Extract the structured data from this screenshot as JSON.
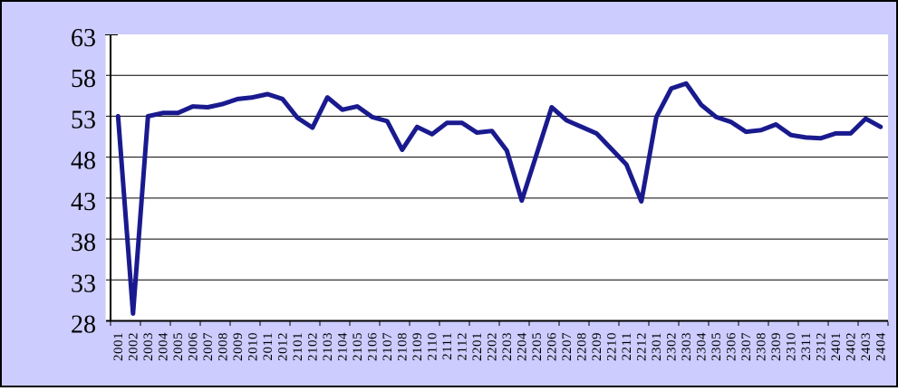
{
  "chart_data": {
    "type": "line",
    "title": "",
    "xlabel": "",
    "ylabel": "",
    "categories": [
      "2001",
      "2002",
      "2003",
      "2004",
      "2005",
      "2006",
      "2007",
      "2008",
      "2009",
      "2010",
      "2011",
      "2012",
      "2101",
      "2102",
      "2103",
      "2104",
      "2105",
      "2106",
      "2107",
      "2108",
      "2109",
      "2110",
      "2111",
      "2112",
      "2201",
      "2202",
      "2203",
      "2204",
      "2205",
      "2206",
      "2207",
      "2208",
      "2209",
      "2210",
      "2211",
      "2212",
      "2301",
      "2302",
      "2303",
      "2304",
      "2305",
      "2306",
      "2307",
      "2308",
      "2309",
      "2310",
      "2311",
      "2312",
      "2401",
      "2402",
      "2403",
      "2404"
    ],
    "values": [
      53.0,
      28.9,
      53.0,
      53.4,
      53.4,
      54.2,
      54.1,
      54.5,
      55.1,
      55.3,
      55.7,
      55.1,
      52.8,
      51.6,
      55.3,
      53.8,
      54.2,
      52.9,
      52.4,
      48.9,
      51.7,
      50.8,
      52.2,
      52.2,
      51.0,
      51.2,
      48.8,
      42.7,
      48.4,
      54.1,
      52.5,
      51.7,
      50.9,
      49.0,
      47.1,
      42.6,
      52.9,
      56.4,
      57.0,
      54.4,
      52.9,
      52.3,
      51.1,
      51.3,
      52.0,
      50.7,
      50.4,
      50.3,
      50.9,
      50.9,
      52.7,
      51.7
    ],
    "yticks": [
      63,
      58,
      53,
      48,
      43,
      38,
      33,
      28
    ],
    "ylim": [
      28,
      63
    ],
    "x_tick_mark_interval": 2,
    "grid": true,
    "legend_position": "none"
  },
  "colors": {
    "canvas_background": "#CCCCFF",
    "plot_background": "#FFFFFF",
    "line": "#1A1A8F",
    "grid": "#000000",
    "axis": "#000000",
    "border": "#000000",
    "text": "#000000"
  }
}
